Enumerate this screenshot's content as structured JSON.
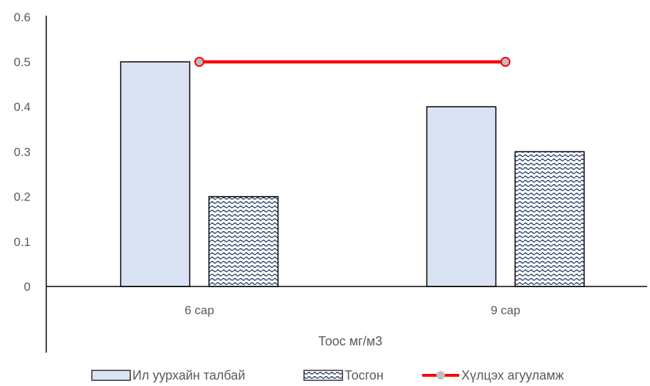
{
  "chart_data": {
    "type": "bar",
    "categories": [
      "6 сар",
      "9 сар"
    ],
    "series": [
      {
        "name": "Ил уурхайн талбай",
        "kind": "bar",
        "values": [
          0.5,
          0.4
        ],
        "color": "#dae3f3"
      },
      {
        "name": "Тосгон",
        "kind": "bar",
        "values": [
          0.2,
          0.3
        ],
        "pattern": "wave",
        "color": "#1f3864"
      },
      {
        "name": "Хүлцэх агууламж",
        "kind": "line",
        "values": [
          0.5,
          0.5
        ],
        "color": "#ff0000",
        "marker_color": "#bfbfbf"
      }
    ],
    "title": "",
    "xlabel": "Тоос мг/м3",
    "ylabel": "",
    "ylim": [
      0,
      0.6
    ],
    "yticks": [
      "0",
      "0.1",
      "0.2",
      "0.3",
      "0.4",
      "0.5",
      "0.6"
    ],
    "grid": false,
    "legend": "bottom"
  }
}
